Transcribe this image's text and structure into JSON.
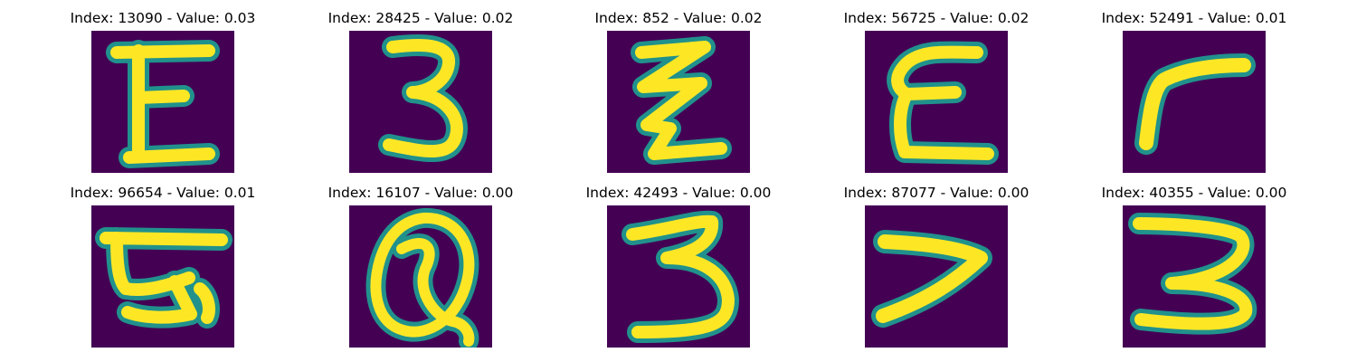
{
  "figure": {
    "background_color": "#440154",
    "stroke_color": "#fde725",
    "edge_color": "#21918c",
    "panels": [
      {
        "index": "13090",
        "value": "0.03",
        "title": "Index: 13090 - Value: 0.03",
        "glyph": "E"
      },
      {
        "index": "28425",
        "value": "0.02",
        "title": "Index: 28425 - Value: 0.02",
        "glyph": "3"
      },
      {
        "index": "852",
        "value": "0.02",
        "title": "Index: 852 - Value: 0.02",
        "glyph": "Z"
      },
      {
        "index": "56725",
        "value": "0.02",
        "title": "Index: 56725 - Value: 0.02",
        "glyph": "E"
      },
      {
        "index": "52491",
        "value": "0.01",
        "title": "Index: 52491 - Value: 0.01",
        "glyph": "r"
      },
      {
        "index": "96654",
        "value": "0.01",
        "title": "Index: 96654 - Value: 0.01",
        "glyph": "E"
      },
      {
        "index": "16107",
        "value": "0.00",
        "title": "Index: 16107 - Value: 0.00",
        "glyph": "Q"
      },
      {
        "index": "42493",
        "value": "0.00",
        "title": "Index: 42493 - Value: 0.00",
        "glyph": "3"
      },
      {
        "index": "87077",
        "value": "0.00",
        "title": "Index: 87077 - Value: 0.00",
        "glyph": "7"
      },
      {
        "index": "40355",
        "value": "0.00",
        "title": "Index: 40355 - Value: 0.00",
        "glyph": "3"
      }
    ]
  }
}
